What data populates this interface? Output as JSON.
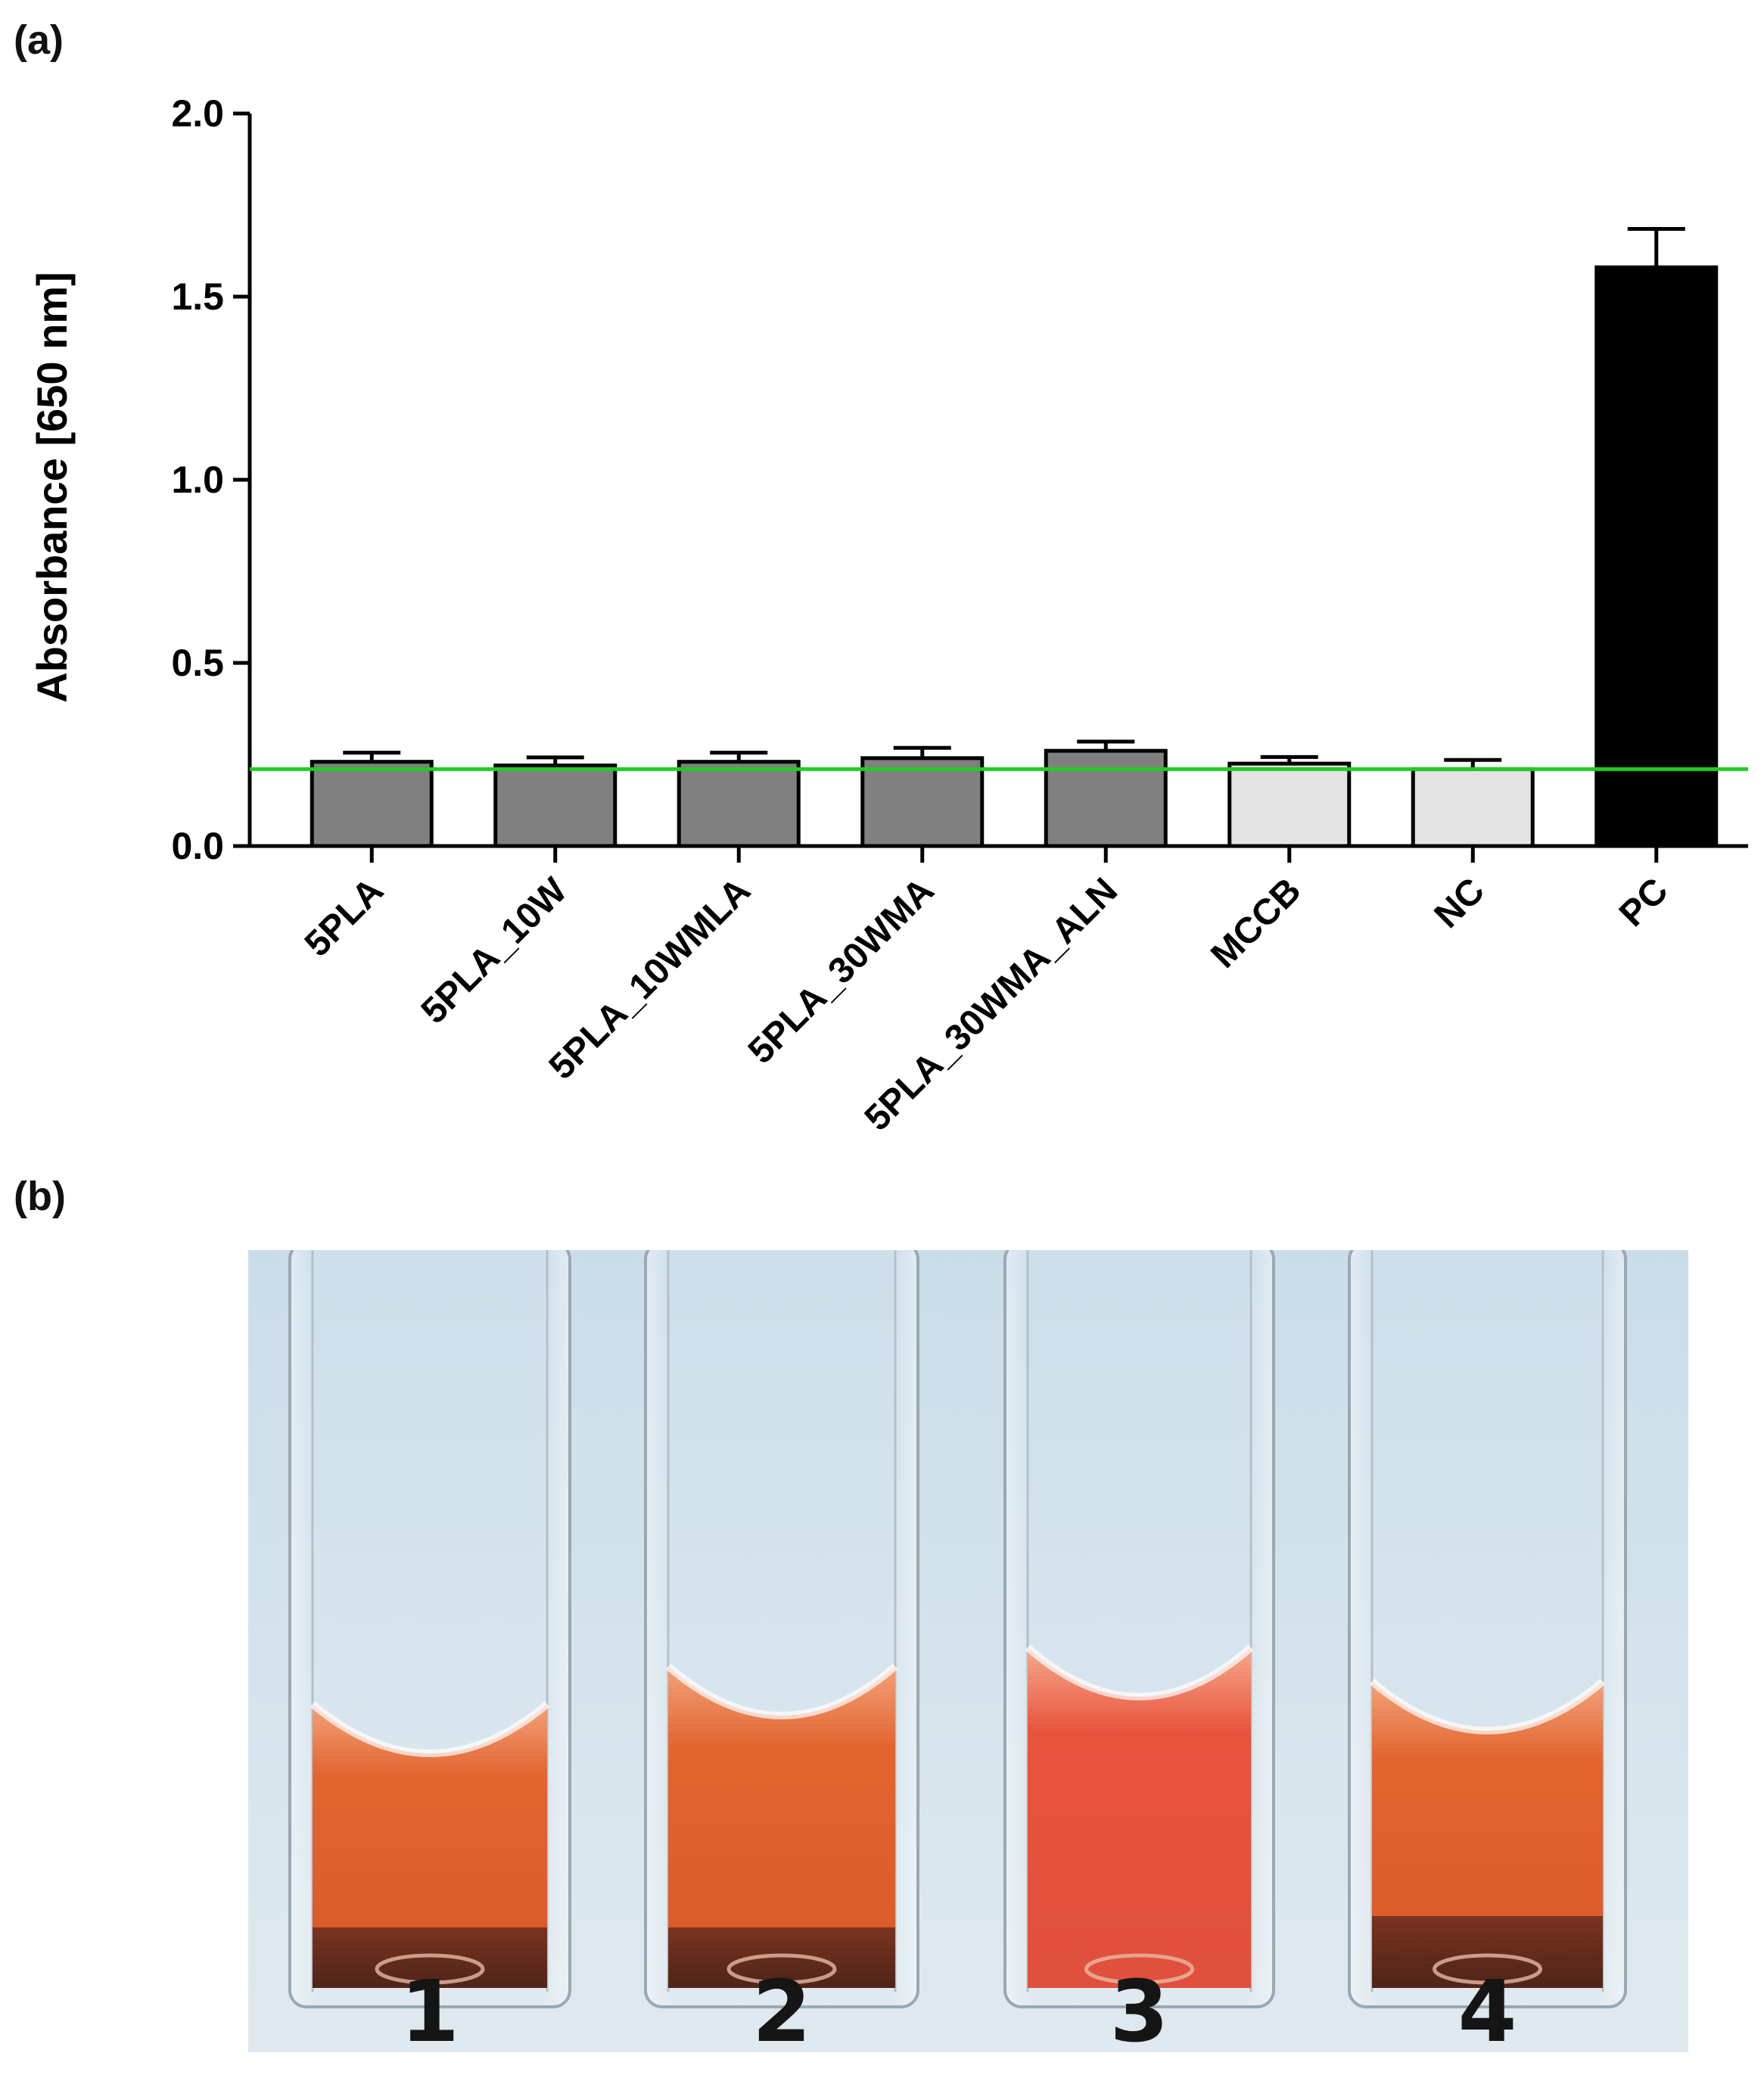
{
  "panels": {
    "a_label": "(a)",
    "b_label": "(b)"
  },
  "chart_data": {
    "type": "bar",
    "title": "",
    "xlabel": "",
    "ylabel": "Absorbance [650 nm]",
    "ylim": [
      0,
      2.0
    ],
    "yticks": [
      0.0,
      0.5,
      1.0,
      1.5,
      2.0
    ],
    "ytick_labels": [
      "0.0",
      "0.5",
      "1.0",
      "1.5",
      "2.0"
    ],
    "categories": [
      "5PLA",
      "5PLA_10W",
      "5PLA_10WMLA",
      "5PLA_30WMA",
      "5PLA_30WMA_ALN",
      "MCCB",
      "NC",
      "PC"
    ],
    "values": [
      0.23,
      0.22,
      0.23,
      0.24,
      0.26,
      0.225,
      0.21,
      1.58
    ],
    "errors": [
      0.025,
      0.022,
      0.025,
      0.028,
      0.025,
      0.018,
      0.025,
      0.105
    ],
    "bar_colors": [
      "#808080",
      "#808080",
      "#808080",
      "#808080",
      "#808080",
      "#e3e3e3",
      "#e3e3e3",
      "#000000"
    ],
    "reference_line": {
      "value": 0.21,
      "color": "#22cc22"
    },
    "grid": false
  },
  "photo": {
    "cuvette_labels": [
      "1",
      "2",
      "3",
      "4"
    ],
    "colors": {
      "background": "#cfe1ec",
      "liquid": "#e0602c",
      "liquid_deep": "#e5503a",
      "sediment": "#6e2e1c"
    }
  }
}
